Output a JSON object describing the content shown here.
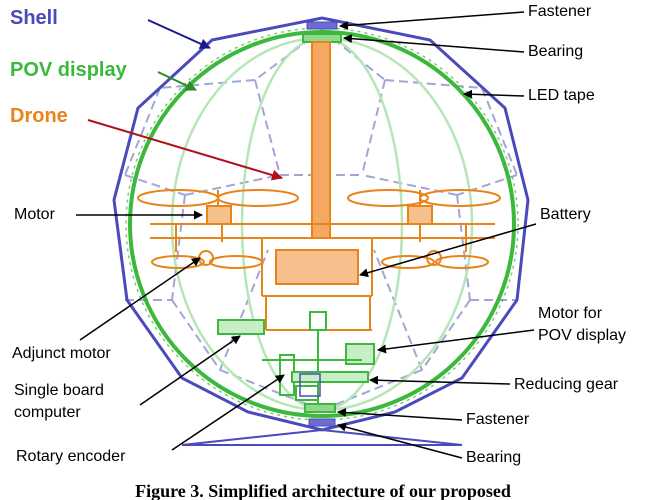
{
  "labels": {
    "shell": "Shell",
    "pov_display": "POV display",
    "drone": "Drone",
    "fastener_top": "Fastener",
    "bearing_top": "Bearing",
    "led_tape": "LED tape",
    "motor": "Motor",
    "battery": "Battery",
    "adjunct_motor": "Adjunct motor",
    "motor_for_line1": "Motor for",
    "motor_for_line2": "POV display",
    "sbc_line1": "Single board",
    "sbc_line2": "computer",
    "reducing_gear": "Reducing gear",
    "rotary_encoder": "Rotary encoder",
    "fastener_bottom": "Fastener",
    "bearing_bottom": "Bearing"
  },
  "caption": "Figure 3. Simplified architecture of our proposed",
  "colors": {
    "shell": "#4a4aba",
    "pov": "#3cb83c",
    "drone": "#e8841a",
    "drone_arrow": "#b0101c",
    "pov_light": "#b6e6b6",
    "frame_dash": "#a4a4d8"
  }
}
